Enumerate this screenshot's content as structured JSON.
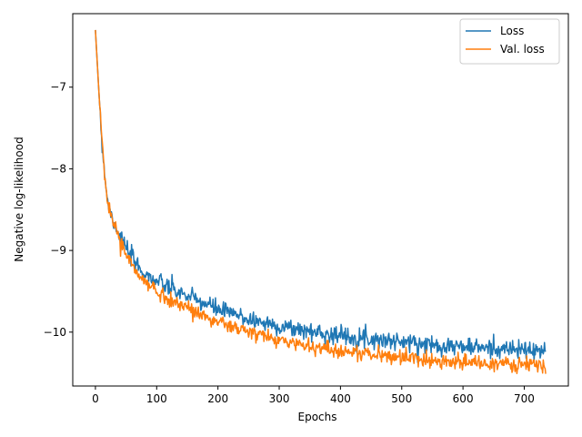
{
  "chart_data": {
    "type": "line",
    "title": "",
    "xlabel": "Epochs",
    "ylabel": "Negative log-likelihood",
    "xlim": [
      -37,
      772
    ],
    "ylim": [
      -10.66,
      -6.1
    ],
    "xticks": [
      0,
      100,
      200,
      300,
      400,
      500,
      600,
      700
    ],
    "yticks": [
      -10,
      -9,
      -8,
      -7
    ],
    "ytick_labels": [
      "−10",
      "−9",
      "−8",
      "−7"
    ],
    "grid": false,
    "legend_position": "top-right",
    "noise_seed": 7,
    "series": [
      {
        "name": "Loss",
        "color": "#1f77b4",
        "noise": 0.055,
        "trend_x": [
          0,
          3,
          6,
          10,
          15,
          20,
          25,
          30,
          40,
          50,
          60,
          70,
          80,
          100,
          120,
          150,
          200,
          250,
          300,
          350,
          400,
          450,
          500,
          550,
          600,
          650,
          700,
          735
        ],
        "trend_y": [
          -6.3,
          -6.7,
          -7.1,
          -7.6,
          -8.05,
          -8.4,
          -8.55,
          -8.65,
          -8.82,
          -8.98,
          -9.1,
          -9.2,
          -9.28,
          -9.38,
          -9.46,
          -9.56,
          -9.72,
          -9.84,
          -9.93,
          -9.99,
          -10.04,
          -10.08,
          -10.12,
          -10.15,
          -10.18,
          -10.2,
          -10.22,
          -10.24
        ]
      },
      {
        "name": "Val. loss",
        "color": "#ff7f0e",
        "noise": 0.045,
        "trend_x": [
          0,
          3,
          6,
          10,
          15,
          20,
          25,
          30,
          40,
          50,
          60,
          70,
          80,
          100,
          120,
          150,
          200,
          250,
          300,
          350,
          400,
          450,
          500,
          550,
          600,
          650,
          700,
          735
        ],
        "trend_y": [
          -6.3,
          -6.7,
          -7.1,
          -7.6,
          -8.05,
          -8.4,
          -8.55,
          -8.67,
          -8.87,
          -9.05,
          -9.18,
          -9.3,
          -9.38,
          -9.5,
          -9.6,
          -9.7,
          -9.88,
          -10.0,
          -10.1,
          -10.17,
          -10.23,
          -10.27,
          -10.31,
          -10.34,
          -10.37,
          -10.39,
          -10.4,
          -10.42
        ]
      }
    ]
  }
}
